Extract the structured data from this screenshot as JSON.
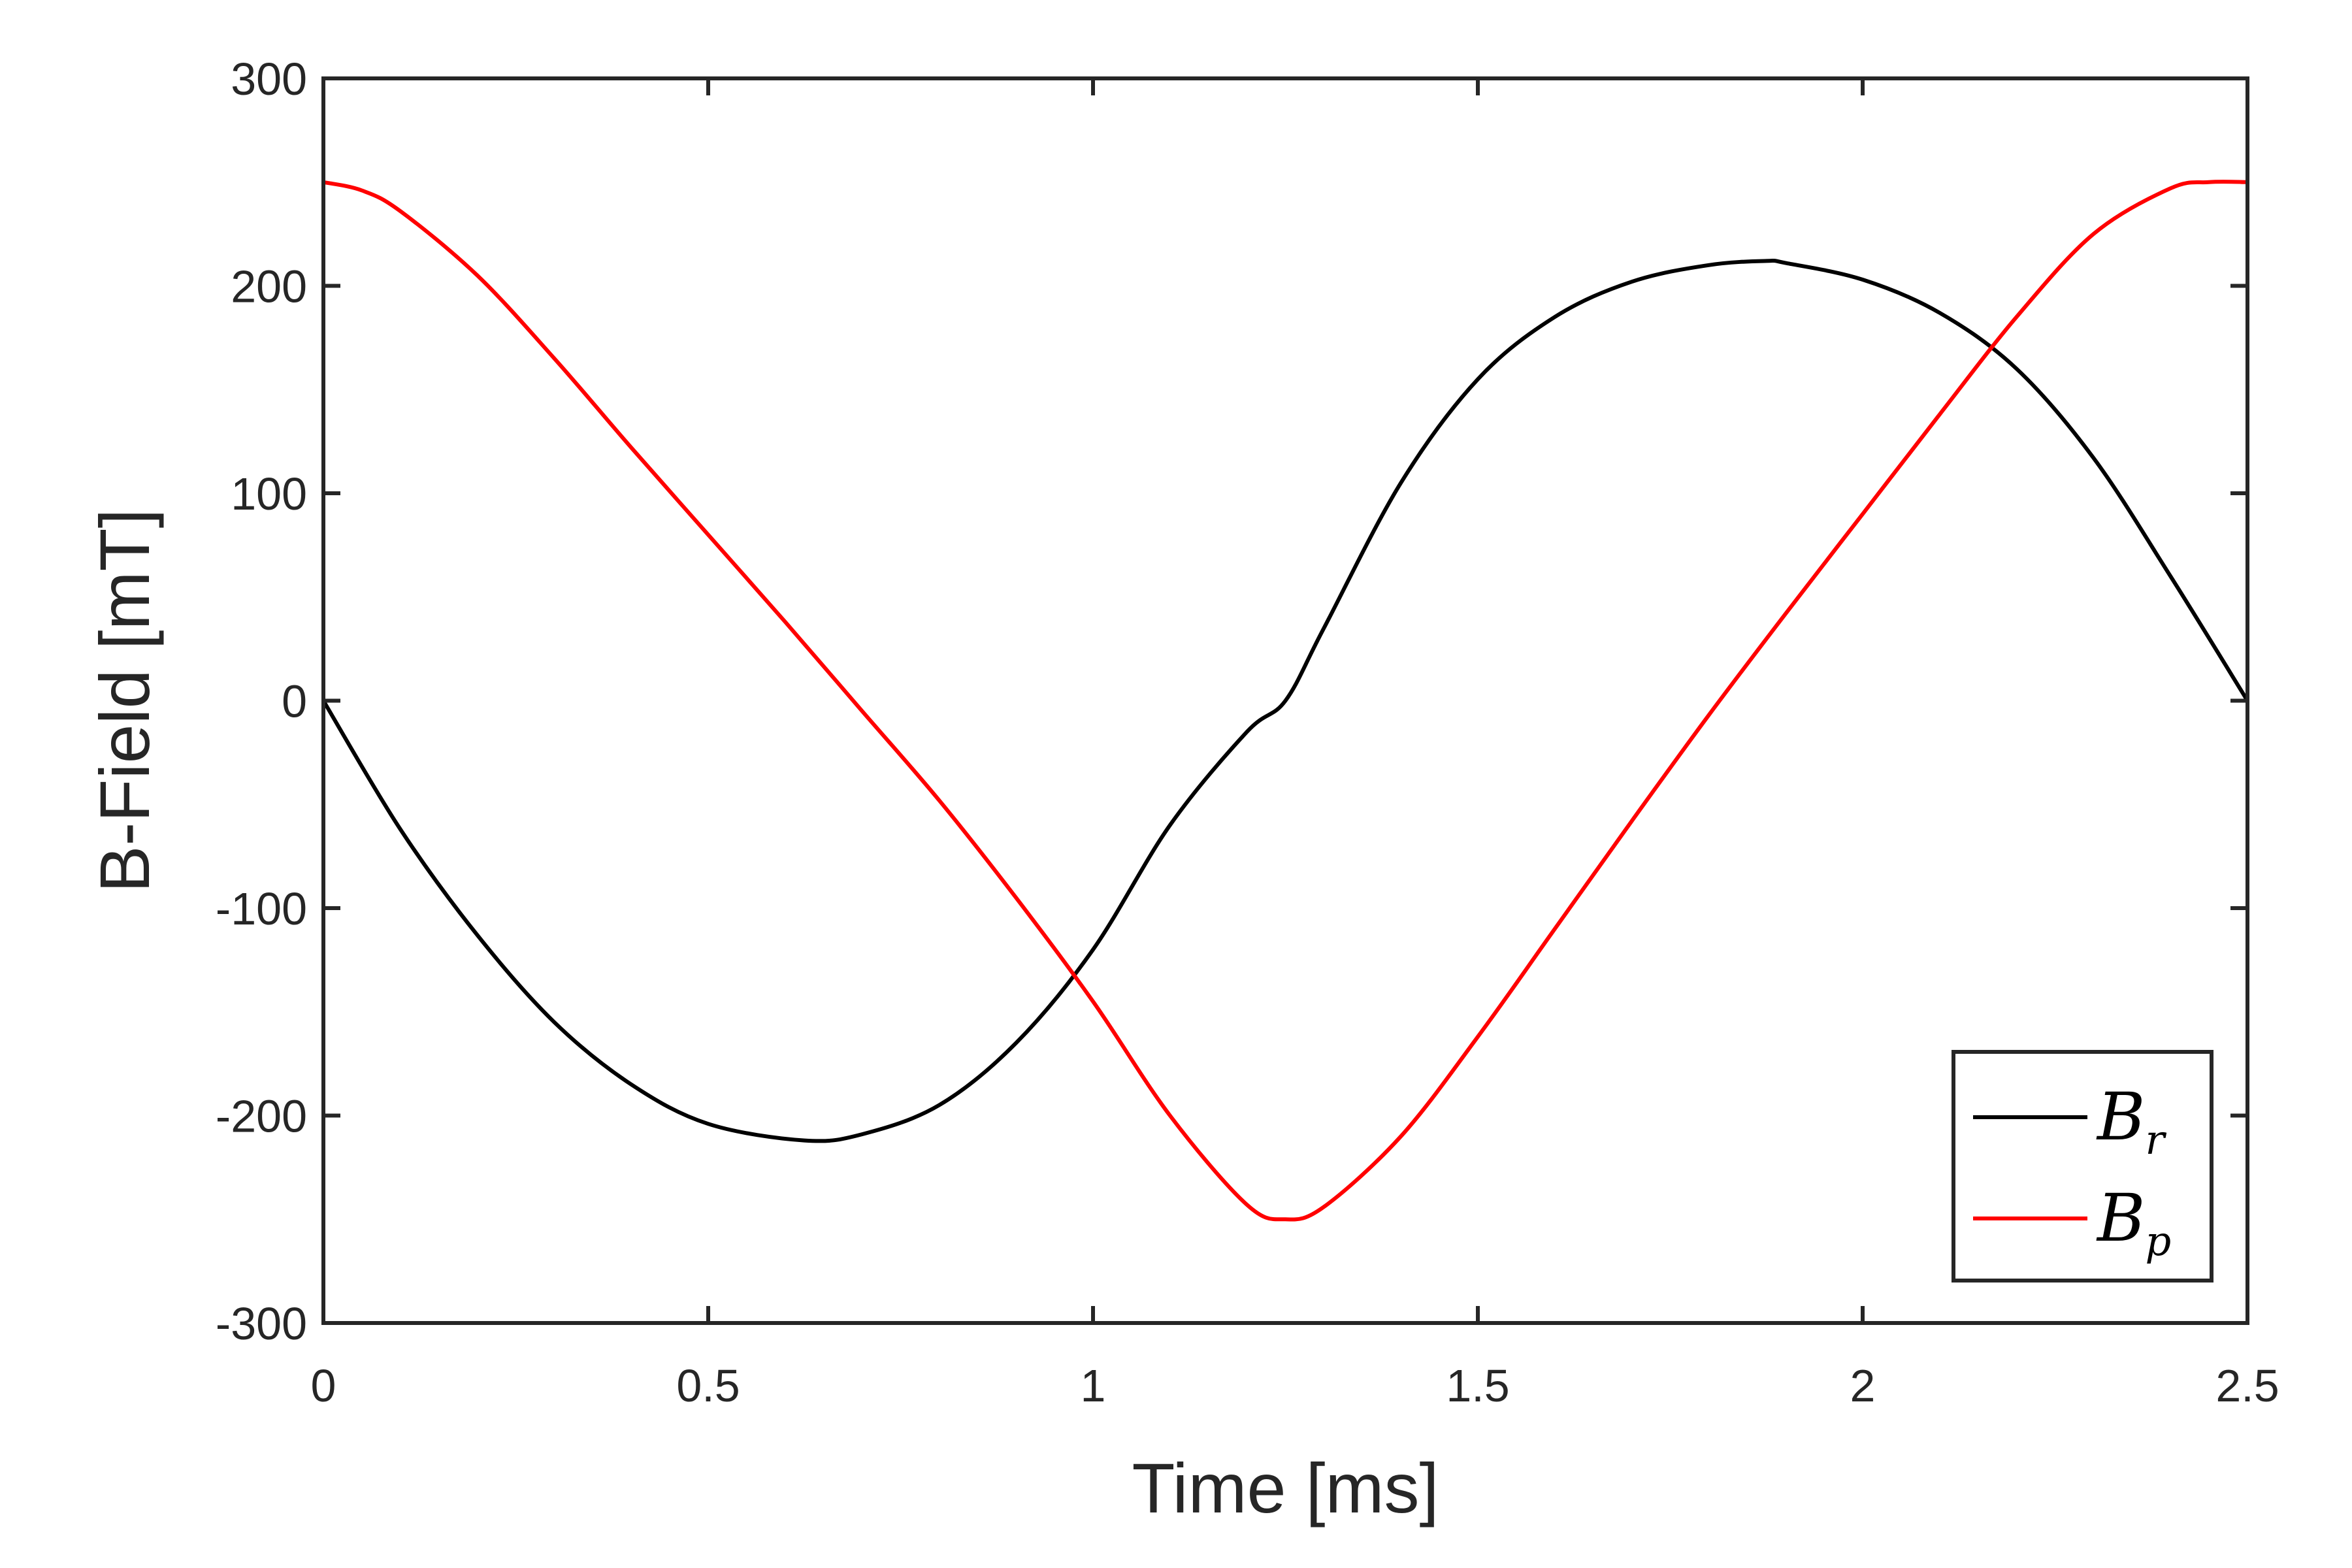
{
  "chart_data": {
    "type": "line",
    "xlabel": "Time [ms]",
    "ylabel": "B-Field [mT]",
    "xlim": [
      0,
      2.5
    ],
    "ylim": [
      -300,
      300
    ],
    "x_ticks": [
      0,
      0.5,
      1,
      1.5,
      2,
      2.5
    ],
    "x_tick_labels": [
      "0",
      "0.5",
      "1",
      "1.5",
      "2",
      "2.5"
    ],
    "y_ticks": [
      -300,
      -200,
      -100,
      0,
      100,
      200,
      300
    ],
    "y_tick_labels": [
      "-300",
      "-200",
      "-100",
      "0",
      "100",
      "200",
      "300"
    ],
    "grid": false,
    "legend_position": "bottom-right",
    "series": [
      {
        "name": "B_r",
        "legend_base": "B",
        "legend_sub": "r",
        "color": "#000000",
        "x": [
          0,
          0.1,
          0.2,
          0.3,
          0.4,
          0.5,
          0.625,
          0.7,
          0.8,
          0.9,
          1.0,
          1.1,
          1.2,
          1.25,
          1.3,
          1.4,
          1.5,
          1.6,
          1.7,
          1.8,
          1.875,
          1.9,
          2.0,
          2.1,
          2.2,
          2.3,
          2.4,
          2.5
        ],
        "y": [
          0,
          -62,
          -113,
          -155,
          -185,
          -204,
          -212,
          -209,
          -195,
          -165,
          -120,
          -60,
          -15,
          0,
          35,
          105,
          155,
          185,
          202,
          210,
          212,
          211,
          203,
          187,
          160,
          117,
          60,
          0
        ]
      },
      {
        "name": "B_p",
        "legend_base": "B",
        "legend_sub": "p",
        "color": "#ff0000",
        "x": [
          0,
          0.05,
          0.1,
          0.2,
          0.3,
          0.4,
          0.5,
          0.6,
          0.7,
          0.8,
          0.9,
          1.0,
          1.1,
          1.2,
          1.25,
          1.3,
          1.4,
          1.5,
          1.6,
          1.7,
          1.8,
          1.9,
          2.0,
          2.1,
          2.2,
          2.3,
          2.4,
          2.45,
          2.5
        ],
        "y": [
          250,
          246,
          236,
          205,
          165,
          122,
          80,
          38,
          -5,
          -48,
          -95,
          -145,
          -200,
          -243,
          -250,
          -244,
          -210,
          -162,
          -110,
          -58,
          -7,
          42,
          90,
          138,
          185,
          225,
          247,
          250,
          250
        ]
      }
    ]
  }
}
